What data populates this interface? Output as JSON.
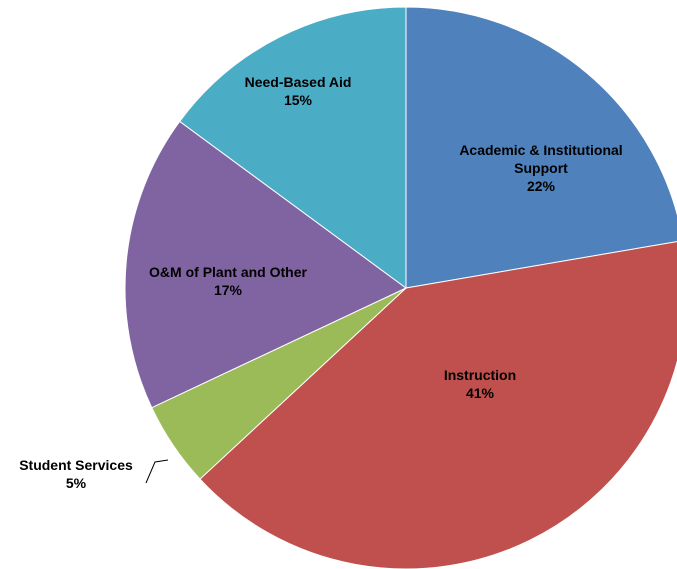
{
  "chart_data": {
    "type": "pie",
    "title": "",
    "start_angle_deg": 0,
    "direction": "clockwise",
    "slices": [
      {
        "label": "Academic & Institutional Support",
        "label_lines": [
          "Academic & Institutional",
          "Support"
        ],
        "percent_label": "22%",
        "value": 22.3,
        "color": "#4F81BD"
      },
      {
        "label": "Instruction",
        "label_lines": [
          "Instruction"
        ],
        "percent_label": "41%",
        "value": 40.8,
        "color": "#C0504D"
      },
      {
        "label": "Student Services",
        "label_lines": [
          "Student Services"
        ],
        "percent_label": "5%",
        "value": 4.9,
        "color": "#9BBB59"
      },
      {
        "label": "O&M of Plant and Other",
        "label_lines": [
          "O&M of Plant and Other"
        ],
        "percent_label": "17%",
        "value": 17.1,
        "color": "#8064A2"
      },
      {
        "label": "Need-Based Aid",
        "label_lines": [
          "Need-Based Aid"
        ],
        "percent_label": "15%",
        "value": 14.9,
        "color": "#4BACC6"
      }
    ]
  }
}
